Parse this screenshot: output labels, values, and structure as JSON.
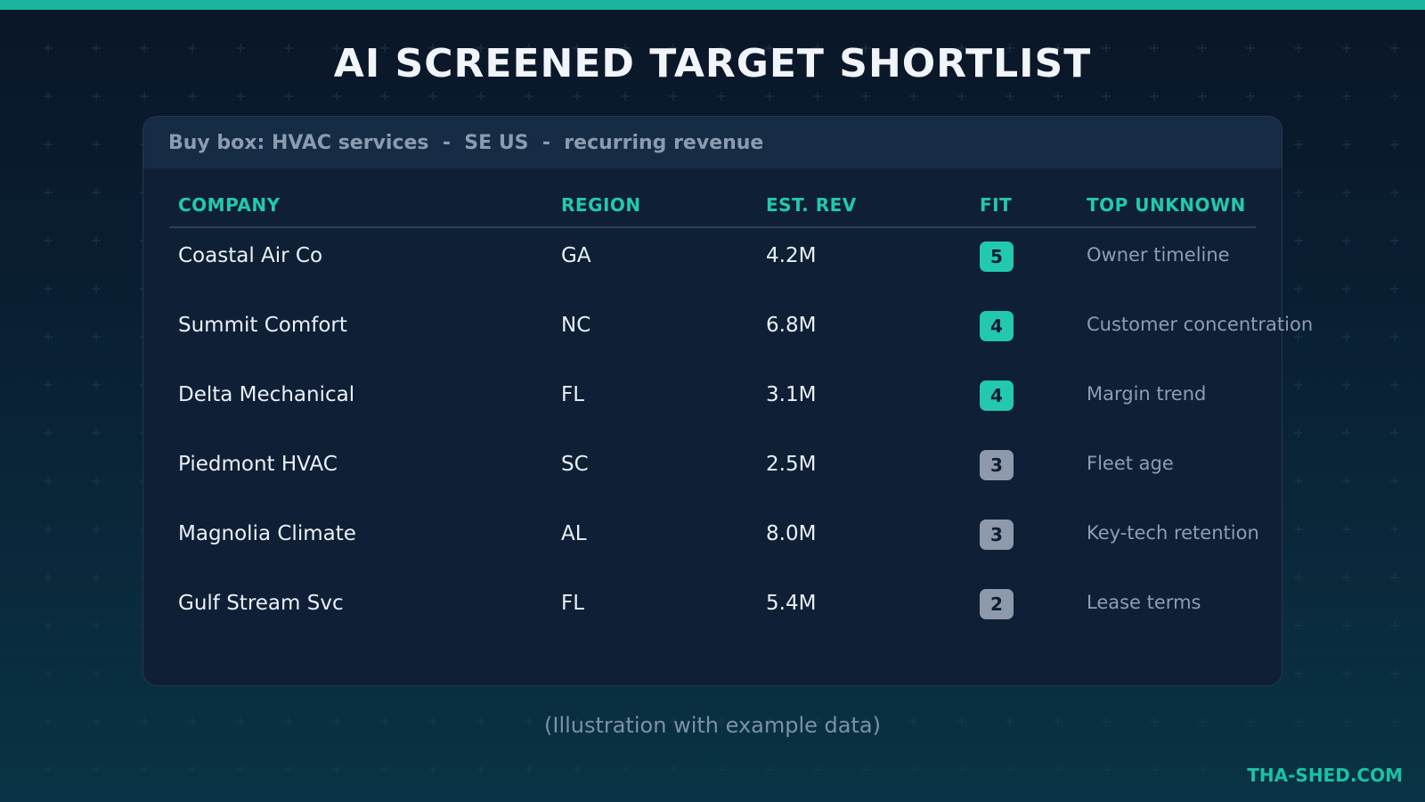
{
  "title": "AI SCREENED TARGET SHORTLIST",
  "buy_box": "Buy box: HVAC services  -  SE US  -  recurring revenue",
  "table": {
    "headers": {
      "company": "COMPANY",
      "region": "REGION",
      "revenue": "EST. REV",
      "fit": "FIT",
      "unknown": "TOP UNKNOWN"
    },
    "rows": [
      {
        "company": "Coastal Air Co",
        "region": "GA",
        "revenue": "4.2M",
        "fit": "5",
        "unknown": "Owner timeline"
      },
      {
        "company": "Summit Comfort",
        "region": "NC",
        "revenue": "6.8M",
        "fit": "4",
        "unknown": "Customer concentration"
      },
      {
        "company": "Delta Mechanical",
        "region": "FL",
        "revenue": "3.1M",
        "fit": "4",
        "unknown": "Margin trend"
      },
      {
        "company": "Piedmont HVAC",
        "region": "SC",
        "revenue": "2.5M",
        "fit": "3",
        "unknown": "Fleet age"
      },
      {
        "company": "Magnolia Climate",
        "region": "AL",
        "revenue": "8.0M",
        "fit": "3",
        "unknown": "Key-tech retention"
      },
      {
        "company": "Gulf Stream Svc",
        "region": "FL",
        "revenue": "5.4M",
        "fit": "2",
        "unknown": "Lease terms"
      }
    ]
  },
  "footnote": "(Illustration with example data)",
  "brand": "THA-SHED.COM",
  "colors": {
    "accent": "#19b59e",
    "fit_high": "#22c9ae",
    "fit_low": "#8e9aab",
    "background_top": "#0a1628",
    "background_bottom": "#093344",
    "card": "#0f1f36"
  }
}
